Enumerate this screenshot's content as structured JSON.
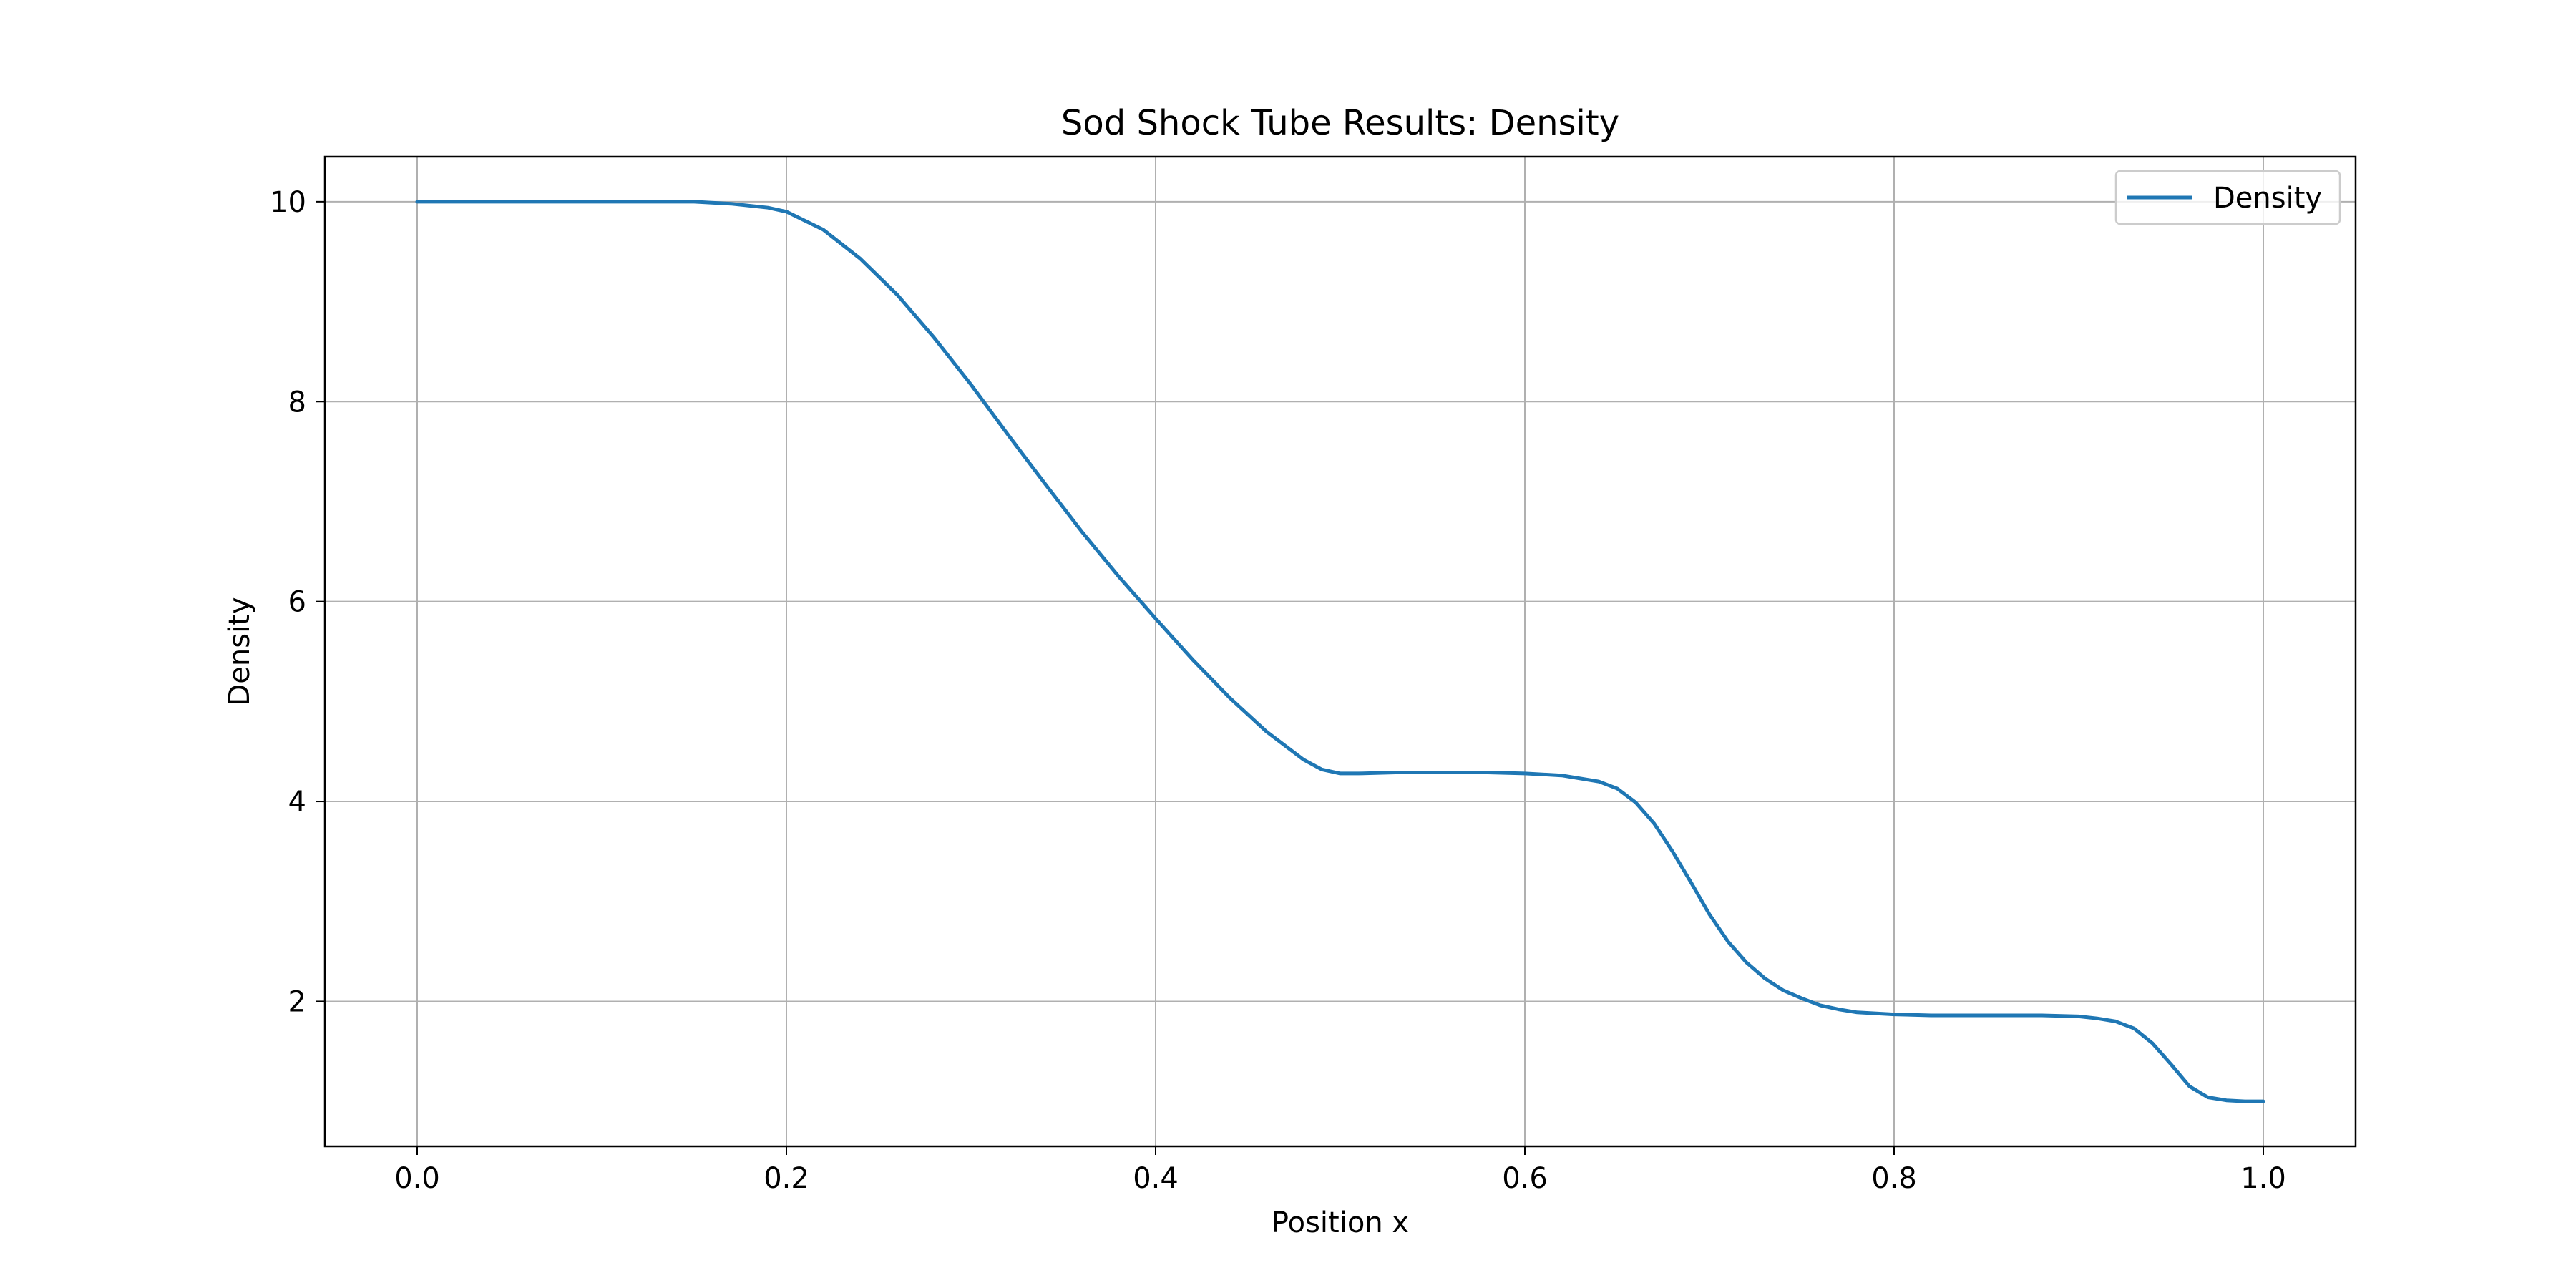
{
  "chart_data": {
    "type": "line",
    "title": "Sod Shock Tube Results: Density",
    "xlabel": "Position x",
    "ylabel": "Density",
    "xlim": [
      -0.05,
      1.05
    ],
    "ylim": [
      0.55,
      10.45
    ],
    "xticks": [
      0.0,
      0.2,
      0.4,
      0.6,
      0.8,
      1.0
    ],
    "xtick_labels": [
      "0.0",
      "0.2",
      "0.4",
      "0.6",
      "0.8",
      "1.0"
    ],
    "yticks": [
      2,
      4,
      6,
      8,
      10
    ],
    "ytick_labels": [
      "2",
      "4",
      "6",
      "8",
      "10"
    ],
    "grid": true,
    "legend_position": "top-right",
    "series": [
      {
        "name": "Density",
        "color": "#1f77b4",
        "x": [
          0.0,
          0.05,
          0.1,
          0.15,
          0.17,
          0.19,
          0.2,
          0.22,
          0.24,
          0.26,
          0.28,
          0.3,
          0.32,
          0.34,
          0.36,
          0.38,
          0.4,
          0.42,
          0.44,
          0.46,
          0.48,
          0.49,
          0.5,
          0.51,
          0.53,
          0.55,
          0.58,
          0.6,
          0.62,
          0.64,
          0.65,
          0.66,
          0.67,
          0.68,
          0.69,
          0.7,
          0.71,
          0.72,
          0.73,
          0.74,
          0.75,
          0.76,
          0.77,
          0.78,
          0.8,
          0.82,
          0.85,
          0.88,
          0.9,
          0.91,
          0.92,
          0.93,
          0.94,
          0.95,
          0.96,
          0.97,
          0.98,
          0.99,
          1.0
        ],
        "y": [
          10.0,
          10.0,
          10.0,
          10.0,
          9.98,
          9.94,
          9.9,
          9.72,
          9.43,
          9.07,
          8.64,
          8.17,
          7.67,
          7.18,
          6.7,
          6.25,
          5.83,
          5.42,
          5.04,
          4.7,
          4.42,
          4.32,
          4.28,
          4.28,
          4.29,
          4.29,
          4.29,
          4.28,
          4.26,
          4.2,
          4.13,
          3.99,
          3.78,
          3.5,
          3.19,
          2.87,
          2.6,
          2.39,
          2.23,
          2.11,
          2.03,
          1.96,
          1.92,
          1.89,
          1.87,
          1.86,
          1.86,
          1.86,
          1.85,
          1.83,
          1.8,
          1.73,
          1.58,
          1.37,
          1.15,
          1.04,
          1.01,
          1.0,
          1.0
        ]
      }
    ]
  }
}
